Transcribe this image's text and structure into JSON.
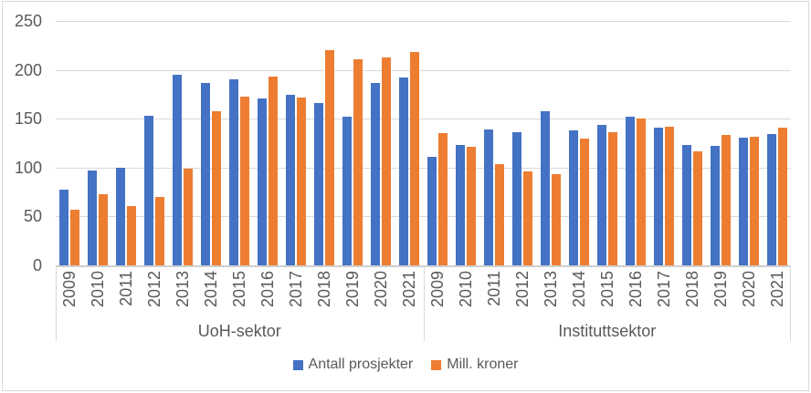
{
  "chart_data": {
    "type": "bar",
    "title": "",
    "groups": [
      "UoH-sektor",
      "Instituttsektor"
    ],
    "categories": [
      "2009",
      "2010",
      "2011",
      "2012",
      "2013",
      "2014",
      "2015",
      "2016",
      "2017",
      "2018",
      "2019",
      "2020",
      "2021"
    ],
    "series": [
      {
        "name": "Antall prosjekter",
        "color": "#4472C4",
        "values_by_group": [
          [
            77,
            97,
            100,
            153,
            195,
            187,
            190,
            171,
            174,
            166,
            152,
            187,
            192
          ],
          [
            111,
            123,
            139,
            136,
            158,
            138,
            144,
            152,
            141,
            123,
            122,
            131,
            134
          ]
        ]
      },
      {
        "name": "Mill. kroner",
        "color": "#ED7D31",
        "values_by_group": [
          [
            57,
            73,
            61,
            70,
            99,
            158,
            173,
            193,
            172,
            220,
            211,
            213,
            218
          ],
          [
            135,
            121,
            104,
            96,
            93,
            130,
            136,
            150,
            142,
            117,
            133,
            132,
            141
          ]
        ]
      }
    ],
    "y_axis": {
      "min": 0,
      "max": 250,
      "step": 50,
      "tick_labels": [
        "0",
        "50",
        "100",
        "150",
        "200",
        "250"
      ]
    },
    "grid": true,
    "legend_position": "bottom"
  },
  "legend": {
    "items": [
      {
        "label": "Antall prosjekter",
        "color": "#4472C4"
      },
      {
        "label": "Mill. kroner",
        "color": "#ED7D31"
      }
    ]
  },
  "style": {
    "text_color": "#595959",
    "gridline_color": "#D9D9D9",
    "axis_line_color": "#CFCFCF",
    "border_color": "#D9D9D9",
    "background": "#FFFFFF"
  }
}
